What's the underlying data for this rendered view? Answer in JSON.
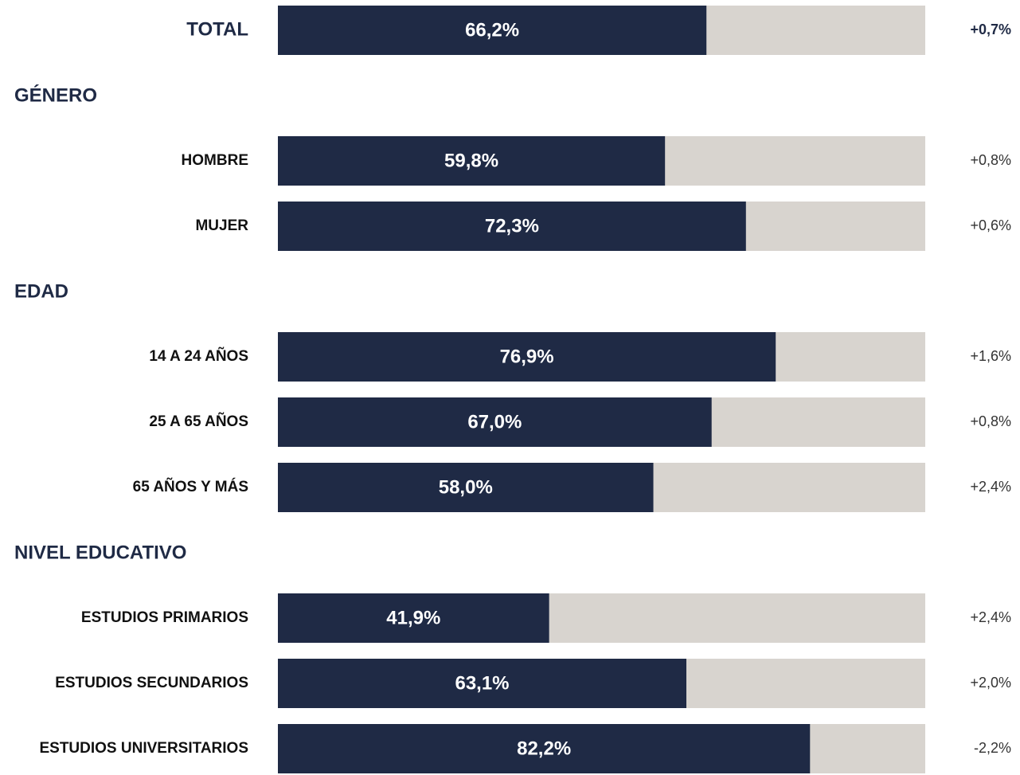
{
  "chart_data": {
    "type": "bar",
    "orientation": "horizontal",
    "xlim": [
      0,
      100
    ],
    "color": "#1f2a45",
    "track_color": "#d8d4cf",
    "groups": [
      {
        "categories": [
          "TOTAL"
        ],
        "values": [
          66.2
        ],
        "value_labels": [
          "66,2%"
        ],
        "change_labels": [
          "+0,7%"
        ]
      },
      {
        "title": "GÉNERO",
        "categories": [
          "HOMBRE",
          "MUJER"
        ],
        "values": [
          59.8,
          72.3
        ],
        "value_labels": [
          "59,8%",
          "72,3%"
        ],
        "change_labels": [
          "+0,8%",
          "+0,6%"
        ]
      },
      {
        "title": "EDAD",
        "categories": [
          "14 A 24 AÑOS",
          "25 A 65 AÑOS",
          "65 AÑOS Y MÁS"
        ],
        "values": [
          76.9,
          67.0,
          58.0
        ],
        "value_labels": [
          "76,9%",
          "67,0%",
          "58,0%"
        ],
        "change_labels": [
          "+1,6%",
          "+0,8%",
          "+2,4%"
        ]
      },
      {
        "title": "NIVEL EDUCATIVO",
        "categories": [
          "ESTUDIOS PRIMARIOS",
          "ESTUDIOS SECUNDARIOS",
          "ESTUDIOS UNIVERSITARIOS"
        ],
        "values": [
          41.9,
          63.1,
          82.2
        ],
        "value_labels": [
          "41,9%",
          "63,1%",
          "82,2%"
        ],
        "change_labels": [
          "+2,4%",
          "+2,0%",
          "-2,2%"
        ]
      }
    ]
  }
}
